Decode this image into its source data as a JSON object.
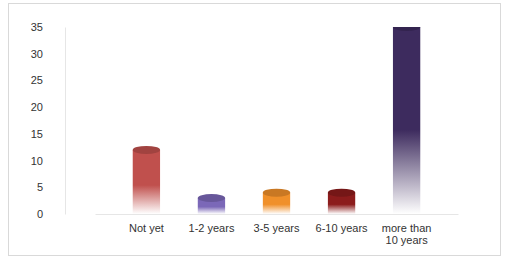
{
  "chart_data": {
    "type": "bar",
    "categories": [
      "Not yet",
      "1-2 years",
      "3-5 years",
      "6-10 years",
      "more than 10 years"
    ],
    "values": [
      12,
      3,
      4,
      4,
      35
    ],
    "colors": [
      "#c0504d",
      "#7b68b8",
      "#f0902a",
      "#8c1c1c",
      "#3d2b5e"
    ],
    "ylim": [
      0,
      35
    ],
    "yticks": [
      0,
      5,
      10,
      15,
      20,
      25,
      30,
      35
    ],
    "grid": false
  }
}
